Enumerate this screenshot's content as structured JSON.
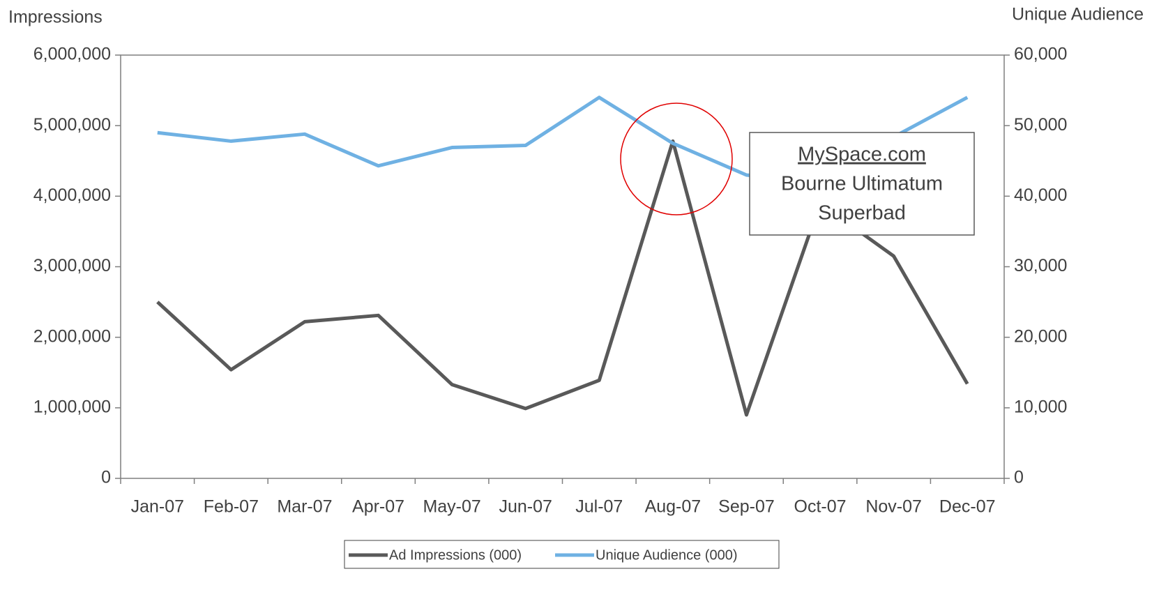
{
  "chart_data": {
    "type": "line",
    "y_axis_title": "Impressions",
    "y2_axis_title": "Unique Audience",
    "categories": [
      "Jan-07",
      "Feb-07",
      "Mar-07",
      "Apr-07",
      "May-07",
      "Jun-07",
      "Jul-07",
      "Aug-07",
      "Sep-07",
      "Oct-07",
      "Nov-07",
      "Dec-07"
    ],
    "series": [
      {
        "name": "Ad Impressions (000)",
        "color": "#595959",
        "values": [
          2500000,
          1540000,
          2220000,
          2310000,
          1330000,
          990000,
          1390000,
          4780000,
          900000,
          3900000,
          3150000,
          1340000
        ]
      },
      {
        "name": "Unique Audience (000)",
        "color": "#6fb1e3",
        "axis": "y2",
        "values": [
          49000,
          47800,
          48800,
          44300,
          46900,
          47200,
          54000,
          47500,
          43000,
          42000,
          48400,
          54000
        ]
      }
    ],
    "ylim": [
      0,
      6000000
    ],
    "yticks": [
      0,
      {
        "value": 1000000,
        "label": "1,000,000"
      },
      {
        "value": 2000000,
        "label": "2,000,000"
      },
      {
        "value": 3000000,
        "label": "3,000,000"
      },
      {
        "value": 4000000,
        "label": "4,000,000"
      },
      {
        "value": 5000000,
        "label": "5,000,000"
      },
      {
        "value": 6000000,
        "label": "6,000,000"
      }
    ],
    "y2lim": [
      0,
      60000
    ],
    "y2ticks": [
      0,
      {
        "value": 10000,
        "label": "10,000"
      },
      {
        "value": 20000,
        "label": "20,000"
      },
      {
        "value": 30000,
        "label": "30,000"
      },
      {
        "value": 40000,
        "label": "40,000"
      },
      {
        "value": 50000,
        "label": "50,000"
      },
      {
        "value": 60000,
        "label": "60,000"
      }
    ],
    "annotation": [
      "MySpace.com",
      "Bourne Ultimatum",
      "Superbad"
    ],
    "legend": "bottom"
  }
}
